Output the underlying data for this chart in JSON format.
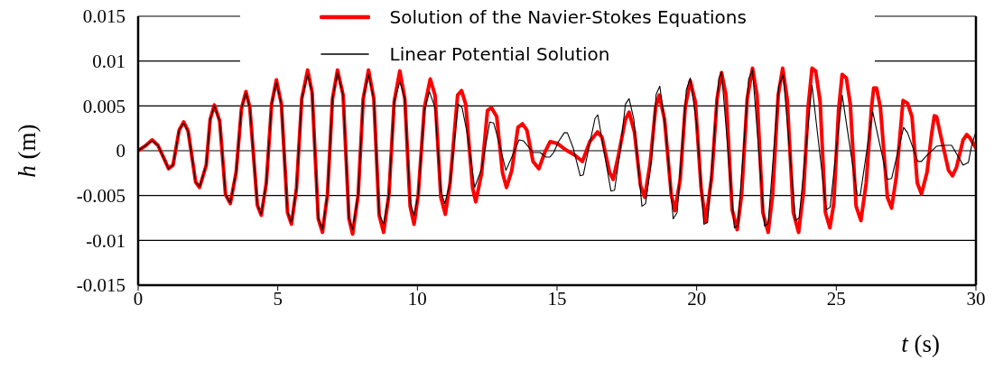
{
  "chart_data": {
    "type": "line",
    "xlabel": "t (s)",
    "ylabel": "h (m)",
    "xlim": [
      0,
      30
    ],
    "xticks": [
      0,
      5,
      10,
      15,
      20,
      25,
      30
    ],
    "ylim": [
      -0.015,
      0.015
    ],
    "yticks": [
      -0.015,
      -0.01,
      -0.005,
      0,
      0.005,
      0.01,
      0.015
    ],
    "grid": "y",
    "legend": "top",
    "marker": "none",
    "series": [
      {
        "name": "Solution of the Navier-Stokes Equations",
        "color": "#ff0000",
        "x": [
          0,
          0.28,
          0.5,
          0.71,
          0.93,
          1.09,
          1.25,
          1.47,
          1.63,
          1.79,
          2.06,
          2.2,
          2.44,
          2.58,
          2.73,
          2.92,
          3.13,
          3.3,
          3.51,
          3.7,
          3.86,
          4.0,
          4.27,
          4.41,
          4.59,
          4.78,
          4.95,
          5.13,
          5.35,
          5.49,
          5.67,
          5.86,
          6.07,
          6.23,
          6.45,
          6.6,
          6.78,
          6.96,
          7.14,
          7.34,
          7.55,
          7.68,
          7.88,
          8.06,
          8.25,
          8.44,
          8.63,
          8.79,
          8.98,
          9.17,
          9.37,
          9.55,
          9.74,
          9.88,
          10.03,
          10.25,
          10.46,
          10.63,
          10.84,
          11.0,
          11.17,
          11.44,
          11.58,
          11.73,
          11.98,
          12.09,
          12.3,
          12.51,
          12.65,
          12.84,
          13.05,
          13.19,
          13.38,
          13.6,
          13.76,
          13.92,
          14.14,
          14.35,
          14.56,
          14.75,
          15.02,
          15.31,
          15.64,
          15.91,
          16.17,
          16.45,
          16.61,
          16.88,
          17.01,
          17.2,
          17.45,
          17.58,
          17.77,
          17.99,
          18.14,
          18.33,
          18.53,
          18.66,
          18.85,
          19.09,
          19.22,
          19.41,
          19.59,
          19.77,
          19.95,
          20.16,
          20.32,
          20.54,
          20.73,
          20.89,
          21.05,
          21.27,
          21.45,
          21.61,
          21.81,
          22.0,
          22.16,
          22.37,
          22.56,
          22.72,
          22.92,
          23.08,
          23.24,
          23.46,
          23.65,
          23.83,
          23.99,
          24.13,
          24.26,
          24.42,
          24.61,
          24.77,
          24.91,
          25.08,
          25.21,
          25.36,
          25.5,
          25.71,
          25.88,
          26.07,
          26.26,
          26.34,
          26.44,
          26.58,
          26.83,
          26.98,
          27.15,
          27.39,
          27.55,
          27.71,
          27.9,
          28.05,
          28.25,
          28.41,
          28.51,
          28.59,
          28.73,
          29.02,
          29.16,
          29.3,
          29.54,
          29.67,
          29.77,
          30
        ],
        "values": [
          0,
          0.0006,
          0.0012,
          0.0006,
          -0.0009,
          -0.002,
          -0.0016,
          0.0023,
          0.0032,
          0.0022,
          -0.0035,
          -0.0041,
          -0.0016,
          0.0035,
          0.0051,
          0.0033,
          -0.0049,
          -0.0059,
          -0.0024,
          0.0047,
          0.0066,
          0.0048,
          -0.0061,
          -0.0072,
          -0.0036,
          0.0052,
          0.0079,
          0.0052,
          -0.0069,
          -0.0082,
          -0.0042,
          0.0058,
          0.009,
          0.0065,
          -0.0076,
          -0.0091,
          -0.0049,
          0.0058,
          0.009,
          0.0062,
          -0.0076,
          -0.0093,
          -0.0049,
          0.0058,
          0.009,
          0.0058,
          -0.0072,
          -0.0091,
          -0.0049,
          0.0055,
          0.0089,
          0.0058,
          -0.0062,
          -0.0082,
          -0.0049,
          0.0048,
          0.008,
          0.0062,
          -0.0052,
          -0.0071,
          -0.0036,
          0.0062,
          0.0067,
          0.0052,
          -0.0042,
          -0.0057,
          -0.0025,
          0.0045,
          0.0048,
          0.0038,
          -0.0025,
          -0.0041,
          -0.0022,
          0.0026,
          0.003,
          0.0023,
          -0.0012,
          -0.002,
          -0.0002,
          0.001,
          0.0008,
          0.0001,
          -0.0005,
          -0.0012,
          0.001,
          0.0021,
          0.0015,
          -0.0024,
          -0.0032,
          -0.0005,
          0.0035,
          0.0043,
          0.0021,
          -0.0039,
          -0.0052,
          -0.0015,
          0.0048,
          0.0062,
          0.0035,
          -0.0049,
          -0.0067,
          -0.0032,
          0.0048,
          0.0078,
          0.0055,
          -0.0042,
          -0.0079,
          -0.0029,
          0.0058,
          0.0087,
          0.0062,
          -0.0066,
          -0.0088,
          -0.0049,
          0.0058,
          0.0092,
          0.0062,
          -0.0069,
          -0.0091,
          -0.0049,
          0.0062,
          0.0092,
          0.0058,
          -0.0069,
          -0.0091,
          -0.0045,
          0.0048,
          0.0092,
          0.0089,
          0.0055,
          -0.0069,
          -0.0086,
          -0.0059,
          0.0045,
          0.0085,
          0.0081,
          0.0052,
          -0.0062,
          -0.0078,
          -0.0036,
          0.0048,
          0.007,
          0.007,
          0.0048,
          -0.0052,
          -0.0064,
          -0.0029,
          0.0056,
          0.0053,
          0.0038,
          -0.0036,
          -0.0048,
          -0.0024,
          0.0018,
          0.0039,
          0.0038,
          0.0018,
          -0.0022,
          -0.0028,
          -0.0019,
          0.0012,
          0.0018,
          0.0015,
          0.0003
        ]
      },
      {
        "name": "Linear Potential Solution",
        "color": "#000000",
        "x": [
          0,
          0.28,
          0.5,
          0.71,
          0.93,
          1.09,
          1.25,
          1.47,
          1.63,
          1.79,
          2.06,
          2.2,
          2.44,
          2.58,
          2.73,
          2.92,
          3.13,
          3.3,
          3.51,
          3.7,
          3.86,
          4.0,
          4.27,
          4.41,
          4.59,
          4.78,
          4.95,
          5.13,
          5.35,
          5.49,
          5.67,
          5.86,
          6.07,
          6.23,
          6.45,
          6.6,
          6.78,
          6.96,
          7.14,
          7.34,
          7.55,
          7.68,
          7.88,
          8.06,
          8.25,
          8.44,
          8.63,
          8.79,
          8.98,
          9.17,
          9.37,
          9.55,
          9.74,
          9.88,
          10.03,
          10.25,
          10.43,
          10.63,
          10.84,
          10.98,
          11.17,
          11.46,
          11.6,
          11.78,
          12.05,
          12.3,
          12.59,
          12.73,
          12.9,
          13.17,
          13.45,
          13.64,
          13.8,
          14.14,
          14.4,
          14.6,
          14.75,
          14.88,
          15.05,
          15.26,
          15.37,
          15.58,
          15.83,
          15.94,
          16.17,
          16.36,
          16.46,
          16.69,
          16.93,
          17.06,
          17.26,
          17.45,
          17.58,
          17.75,
          18.04,
          18.17,
          18.38,
          18.55,
          18.68,
          18.9,
          19.16,
          19.3,
          19.63,
          19.77,
          20.0,
          20.26,
          20.39,
          20.79,
          20.89,
          21.35,
          21.48,
          21.86,
          22.0,
          22.43,
          22.56,
          22.94,
          23.1,
          23.54,
          23.67,
          24.13,
          24.64,
          24.78,
          25.21,
          25.75,
          25.86,
          26.3,
          26.83,
          26.98,
          27.41,
          27.55,
          27.92,
          28.05,
          28.25,
          28.59,
          28.89,
          29.13,
          29.54,
          29.73,
          29.86,
          30
        ],
        "values": [
          0,
          0.0006,
          0.0011,
          0.0006,
          -0.0009,
          -0.002,
          -0.0016,
          0.0023,
          0.0031,
          0.0022,
          -0.0035,
          -0.004,
          -0.0016,
          0.0035,
          0.005,
          0.0033,
          -0.0049,
          -0.0058,
          -0.0024,
          0.0047,
          0.0064,
          0.0048,
          -0.006,
          -0.0071,
          -0.0036,
          0.0052,
          0.0076,
          0.0052,
          -0.0068,
          -0.008,
          -0.0042,
          0.0058,
          0.0085,
          0.0065,
          -0.0075,
          -0.0088,
          -0.0049,
          0.0058,
          0.0087,
          0.0062,
          -0.0075,
          -0.0088,
          -0.0049,
          0.0058,
          0.0085,
          0.0058,
          -0.007,
          -0.0082,
          -0.0049,
          0.0055,
          0.0077,
          0.0058,
          -0.0058,
          -0.0072,
          -0.0049,
          0.0045,
          0.0066,
          0.0048,
          -0.0045,
          -0.0059,
          -0.0036,
          0.0052,
          0.0048,
          0.002,
          -0.0041,
          -0.002,
          0.0032,
          0.0031,
          0.0012,
          -0.0022,
          -0.0002,
          0.0012,
          0.0011,
          -0.0002,
          -0.0002,
          -0.0007,
          -0.0007,
          -0.0002,
          0.001,
          0.002,
          0.002,
          0.0003,
          -0.0028,
          -0.0027,
          0.0008,
          0.0036,
          0.004,
          -0.0002,
          -0.0045,
          -0.0044,
          0,
          0.0052,
          0.0058,
          0.0035,
          -0.0062,
          -0.0059,
          -0.001,
          0.0063,
          0.0072,
          0.002,
          -0.0076,
          -0.0069,
          0.0068,
          0.0081,
          0.003,
          -0.0082,
          -0.008,
          0.008,
          0.0088,
          -0.0086,
          -0.0083,
          0.008,
          0.009,
          -0.0084,
          -0.0081,
          0.0072,
          0.0085,
          -0.0078,
          -0.0075,
          0.0073,
          -0.0066,
          -0.0063,
          0.0062,
          -0.005,
          -0.0049,
          0.0044,
          -0.0032,
          -0.0031,
          0.0026,
          0.002,
          -0.0012,
          -0.0012,
          -0.0005,
          0.0005,
          0.0006,
          0.0006,
          -0.0016,
          -0.0013,
          0.0008,
          0.0021
        ]
      }
    ]
  }
}
